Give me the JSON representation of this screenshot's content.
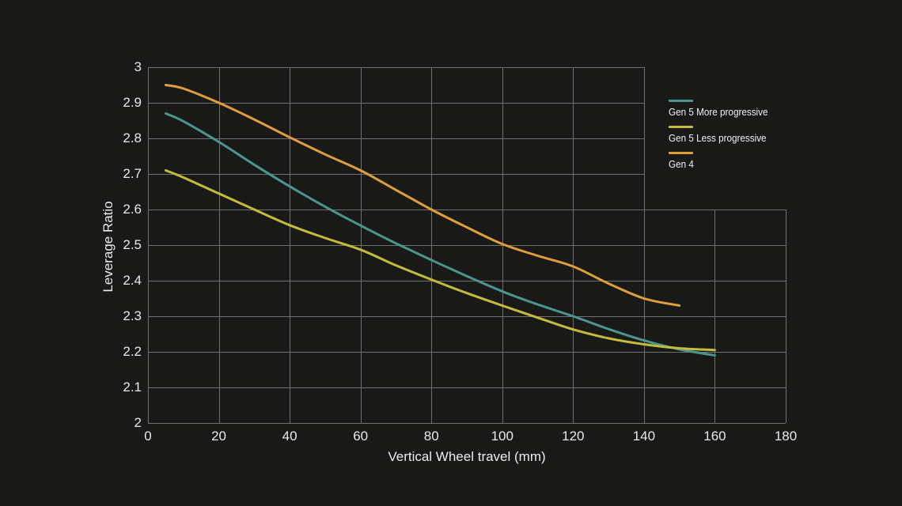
{
  "chart_data": {
    "type": "line",
    "title": "",
    "xlabel": "Vertical Wheel travel (mm)",
    "ylabel": "Leverage Ratio",
    "xlim": [
      0,
      180
    ],
    "ylim": [
      2,
      3
    ],
    "x_ticks": [
      0,
      20,
      40,
      60,
      80,
      100,
      120,
      140,
      160,
      180
    ],
    "x_tick_labels": [
      "0",
      "20",
      "40",
      "60",
      "80",
      "100",
      "120",
      "140",
      "160",
      "180"
    ],
    "y_ticks": [
      3,
      2.9,
      2.8,
      2.7,
      2.6,
      2.5,
      2.4,
      2.3,
      2.2,
      2.1,
      2
    ],
    "y_tick_labels": [
      "3",
      "2.9",
      "2.8",
      "2.7",
      "2.6",
      "2.5",
      "2.4",
      "2.3",
      "2.2",
      "2.1",
      "2"
    ],
    "grid": true,
    "legend_position": "top-right",
    "grid_notch": {
      "x_from": 140,
      "y_below": 2.6
    },
    "colors": {
      "background": "#191917",
      "grid": "#6f6f6f",
      "text": "#ededed"
    },
    "series": [
      {
        "name": "Gen 5 More progressive",
        "color": "#4a968e",
        "points": [
          [
            5,
            2.87
          ],
          [
            10,
            2.848
          ],
          [
            20,
            2.79
          ],
          [
            30,
            2.726
          ],
          [
            40,
            2.665
          ],
          [
            50,
            2.608
          ],
          [
            60,
            2.555
          ],
          [
            70,
            2.505
          ],
          [
            80,
            2.458
          ],
          [
            90,
            2.413
          ],
          [
            100,
            2.37
          ],
          [
            110,
            2.333
          ],
          [
            120,
            2.3
          ],
          [
            130,
            2.264
          ],
          [
            140,
            2.232
          ],
          [
            150,
            2.207
          ],
          [
            160,
            2.19
          ]
        ]
      },
      {
        "name": "Gen 5 Less progressive",
        "color": "#c3bc3b",
        "points": [
          [
            5,
            2.71
          ],
          [
            10,
            2.69
          ],
          [
            20,
            2.645
          ],
          [
            30,
            2.6
          ],
          [
            40,
            2.556
          ],
          [
            50,
            2.52
          ],
          [
            60,
            2.487
          ],
          [
            70,
            2.443
          ],
          [
            80,
            2.403
          ],
          [
            90,
            2.365
          ],
          [
            100,
            2.33
          ],
          [
            110,
            2.296
          ],
          [
            120,
            2.263
          ],
          [
            130,
            2.238
          ],
          [
            140,
            2.221
          ],
          [
            150,
            2.21
          ],
          [
            160,
            2.205
          ]
        ]
      },
      {
        "name": "Gen 4",
        "color": "#de9e3c",
        "points": [
          [
            5,
            2.95
          ],
          [
            10,
            2.94
          ],
          [
            20,
            2.9
          ],
          [
            30,
            2.853
          ],
          [
            40,
            2.803
          ],
          [
            50,
            2.755
          ],
          [
            60,
            2.71
          ],
          [
            70,
            2.655
          ],
          [
            80,
            2.6
          ],
          [
            90,
            2.55
          ],
          [
            100,
            2.503
          ],
          [
            110,
            2.47
          ],
          [
            120,
            2.44
          ],
          [
            130,
            2.392
          ],
          [
            140,
            2.35
          ],
          [
            150,
            2.33
          ]
        ]
      }
    ]
  }
}
